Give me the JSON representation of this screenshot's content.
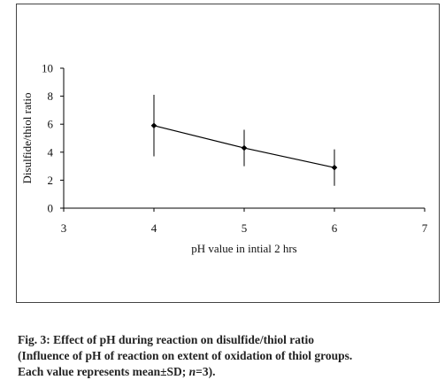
{
  "chart_data": {
    "type": "scatter",
    "xlabel": "pH value in intial 2 hrs",
    "ylabel": "Disulfide/thiol ratio",
    "xlim": [
      3,
      7
    ],
    "ylim": [
      0,
      10
    ],
    "xticks": [
      "3",
      "4",
      "5",
      "6",
      "7"
    ],
    "yticks": [
      "0",
      "2",
      "4",
      "6",
      "8",
      "10"
    ],
    "grid": false,
    "series": [
      {
        "x": [
          4,
          5,
          6
        ],
        "y": [
          5.9,
          4.3,
          2.9
        ],
        "error": [
          2.2,
          1.3,
          1.3
        ],
        "color": "#000000",
        "marker": "diamond",
        "line": true
      }
    ]
  },
  "caption": {
    "line1": "Fig. 3: Effect of pH during reaction on disulfide/thiol ratio",
    "line2": "(Influence of pH of reaction on extent of oxidation of thiol groups.",
    "line3_prefix": "Each value represents mean±SD; ",
    "line3_n": "n",
    "line3_suffix": "=3)."
  }
}
